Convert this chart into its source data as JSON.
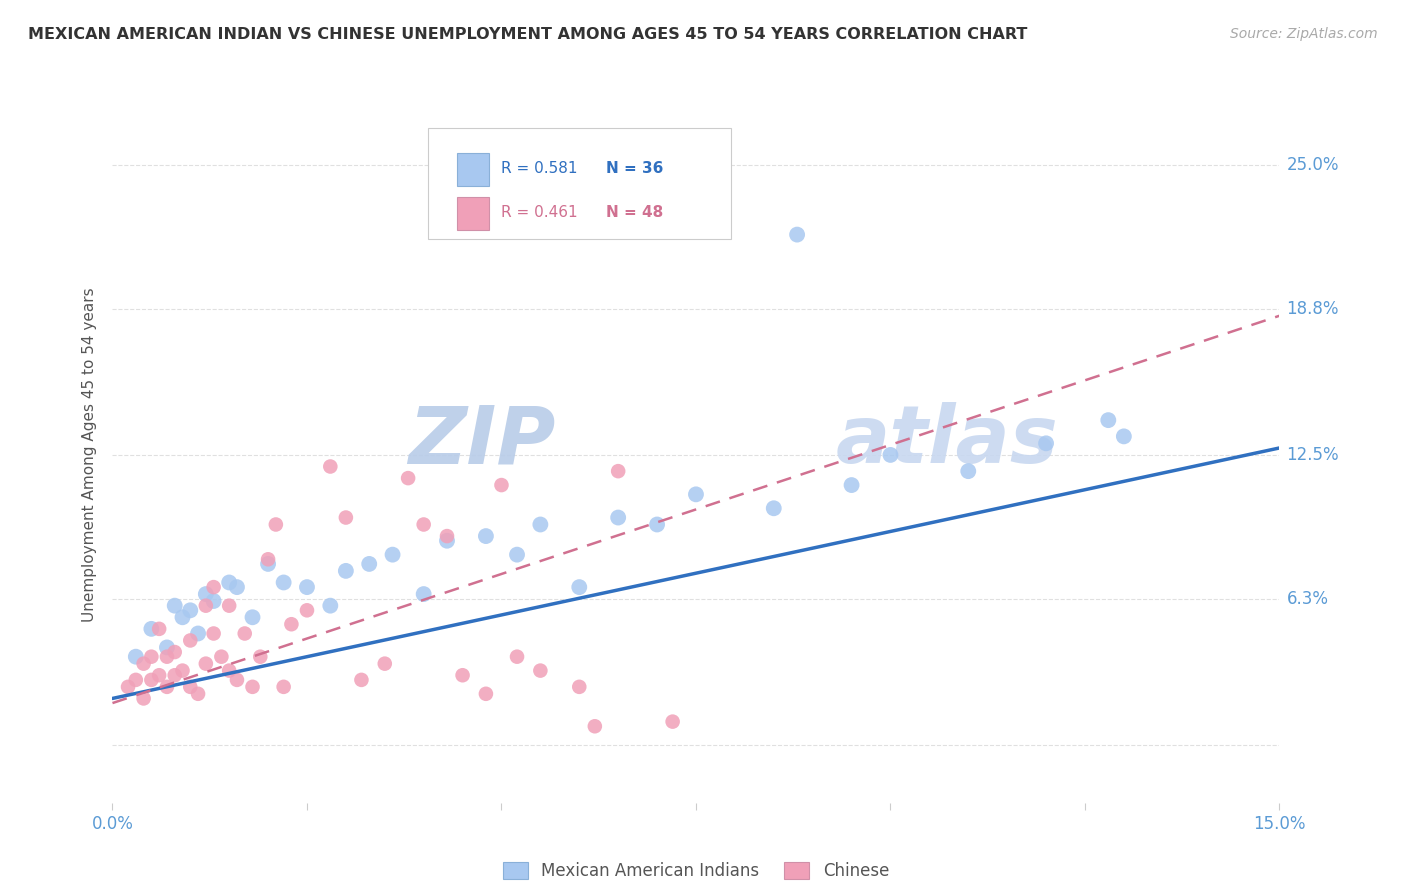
{
  "title": "MEXICAN AMERICAN INDIAN VS CHINESE UNEMPLOYMENT AMONG AGES 45 TO 54 YEARS CORRELATION CHART",
  "source": "Source: ZipAtlas.com",
  "ylabel": "Unemployment Among Ages 45 to 54 years",
  "xlim": [
    0.0,
    0.15
  ],
  "ylim": [
    -0.025,
    0.275
  ],
  "xticks": [
    0.0,
    0.025,
    0.05,
    0.075,
    0.1,
    0.125,
    0.15
  ],
  "xticklabels": [
    "0.0%",
    "",
    "",
    "",
    "",
    "",
    "15.0%"
  ],
  "ytick_positions": [
    0.0,
    0.063,
    0.125,
    0.188,
    0.25
  ],
  "yticklabels": [
    "",
    "6.3%",
    "12.5%",
    "18.8%",
    "25.0%"
  ],
  "r_blue": 0.581,
  "n_blue": 36,
  "r_pink": 0.461,
  "n_pink": 48,
  "blue_color": "#a8c8f0",
  "pink_color": "#f0a0b8",
  "line_blue_color": "#3070c0",
  "line_pink_color": "#d07090",
  "watermark": "ZIPatlas",
  "watermark_color": "#d0dff5",
  "blue_scatter_x": [
    0.003,
    0.005,
    0.007,
    0.008,
    0.009,
    0.01,
    0.011,
    0.012,
    0.013,
    0.015,
    0.016,
    0.018,
    0.02,
    0.022,
    0.025,
    0.028,
    0.03,
    0.033,
    0.036,
    0.04,
    0.043,
    0.048,
    0.052,
    0.055,
    0.06,
    0.065,
    0.07,
    0.075,
    0.085,
    0.088,
    0.095,
    0.1,
    0.11,
    0.12,
    0.128,
    0.13
  ],
  "blue_scatter_y": [
    0.038,
    0.05,
    0.042,
    0.06,
    0.055,
    0.058,
    0.048,
    0.065,
    0.062,
    0.07,
    0.068,
    0.055,
    0.078,
    0.07,
    0.068,
    0.06,
    0.075,
    0.078,
    0.082,
    0.065,
    0.088,
    0.09,
    0.082,
    0.095,
    0.068,
    0.098,
    0.095,
    0.108,
    0.102,
    0.22,
    0.112,
    0.125,
    0.118,
    0.13,
    0.14,
    0.133
  ],
  "pink_scatter_x": [
    0.002,
    0.003,
    0.004,
    0.004,
    0.005,
    0.005,
    0.006,
    0.006,
    0.007,
    0.007,
    0.008,
    0.008,
    0.009,
    0.01,
    0.01,
    0.011,
    0.012,
    0.012,
    0.013,
    0.013,
    0.014,
    0.015,
    0.015,
    0.016,
    0.017,
    0.018,
    0.019,
    0.02,
    0.021,
    0.022,
    0.023,
    0.025,
    0.028,
    0.03,
    0.032,
    0.035,
    0.038,
    0.04,
    0.043,
    0.045,
    0.048,
    0.05,
    0.052,
    0.055,
    0.06,
    0.062,
    0.065,
    0.072
  ],
  "pink_scatter_y": [
    0.025,
    0.028,
    0.02,
    0.035,
    0.028,
    0.038,
    0.03,
    0.05,
    0.025,
    0.038,
    0.04,
    0.03,
    0.032,
    0.025,
    0.045,
    0.022,
    0.035,
    0.06,
    0.048,
    0.068,
    0.038,
    0.032,
    0.06,
    0.028,
    0.048,
    0.025,
    0.038,
    0.08,
    0.095,
    0.025,
    0.052,
    0.058,
    0.12,
    0.098,
    0.028,
    0.035,
    0.115,
    0.095,
    0.09,
    0.03,
    0.022,
    0.112,
    0.038,
    0.032,
    0.025,
    0.008,
    0.118,
    0.01
  ],
  "blue_line_x": [
    0.0,
    0.15
  ],
  "blue_line_y": [
    0.02,
    0.128
  ],
  "pink_line_x": [
    0.0,
    0.15
  ],
  "pink_line_y": [
    0.018,
    0.185
  ],
  "grid_color": "#e0e0e0",
  "background_color": "#ffffff",
  "title_color": "#333333",
  "axis_color": "#5b9bd5",
  "legend_label_color": "#555555"
}
